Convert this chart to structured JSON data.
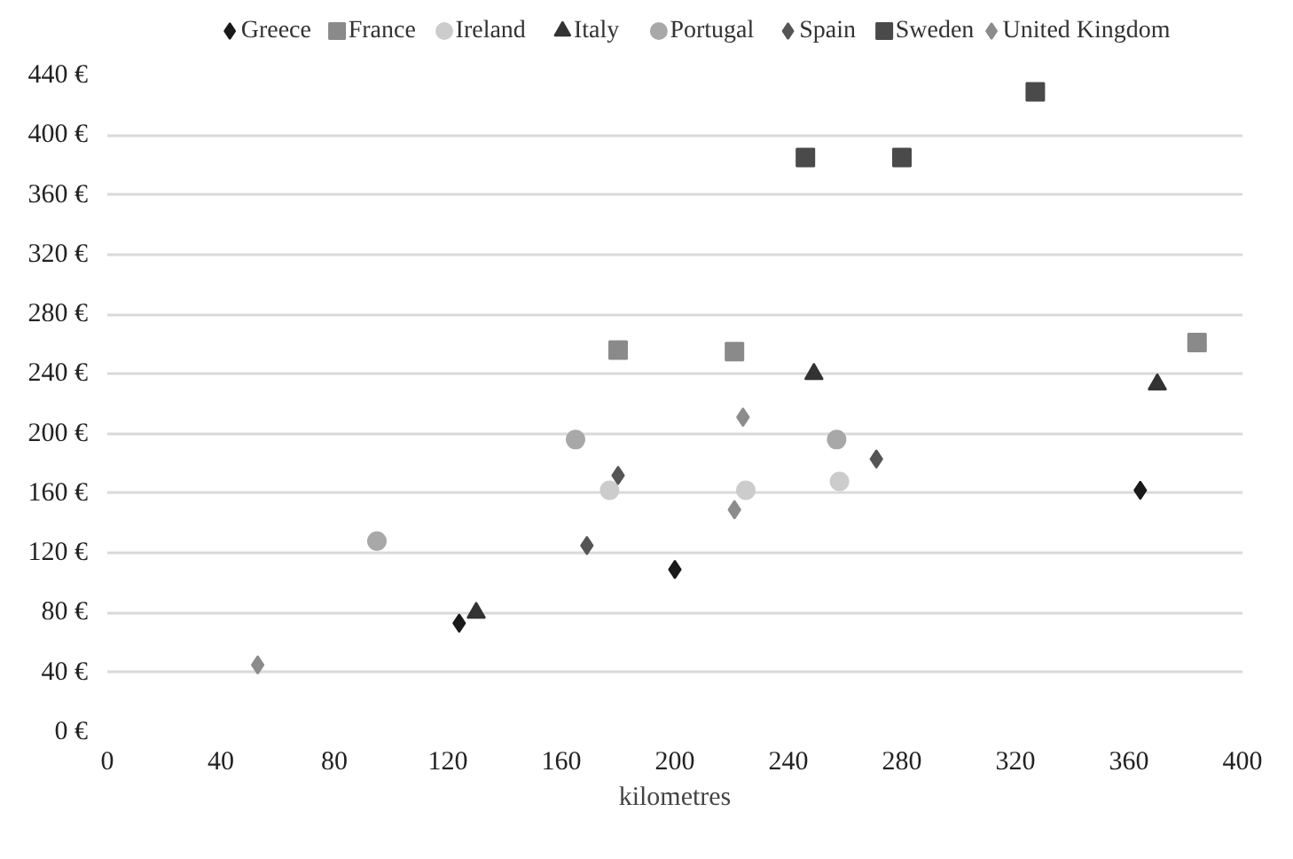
{
  "chart_data": {
    "type": "scatter",
    "xlabel": "kilometres",
    "xlim": [
      0,
      400
    ],
    "xticks": [
      0,
      40,
      80,
      120,
      160,
      200,
      240,
      280,
      320,
      360,
      400
    ],
    "ylim": [
      0,
      440
    ],
    "yticks": [
      {
        "value": 0,
        "label": "0 €"
      },
      {
        "value": 40,
        "label": "40 €"
      },
      {
        "value": 80,
        "label": "80 €"
      },
      {
        "value": 120,
        "label": "120 €"
      },
      {
        "value": 160,
        "label": "160 €"
      },
      {
        "value": 200,
        "label": "200 €"
      },
      {
        "value": 240,
        "label": "240 €"
      },
      {
        "value": 280,
        "label": "280 €"
      },
      {
        "value": 320,
        "label": "320 €"
      },
      {
        "value": 360,
        "label": "360 €"
      },
      {
        "value": 400,
        "label": "400 €"
      },
      {
        "value": 440,
        "label": "440 €"
      }
    ],
    "grid": "y",
    "legend": "top",
    "series": [
      {
        "name": "Greece",
        "color": "#1a1a1a",
        "marker": "diamond",
        "x": [
          124,
          200,
          364
        ],
        "values": [
          73,
          109,
          162
        ]
      },
      {
        "name": "France",
        "color": "#8a8a8a",
        "marker": "square",
        "x": [
          180,
          221,
          384
        ],
        "values": [
          256,
          255,
          261
        ]
      },
      {
        "name": "Ireland",
        "color": "#cccccc",
        "marker": "circle",
        "x": [
          177,
          225,
          258
        ],
        "values": [
          162,
          162,
          168
        ]
      },
      {
        "name": "Italy",
        "color": "#333333",
        "marker": "triangle",
        "x": [
          130,
          249,
          370
        ],
        "values": [
          80,
          240,
          233
        ]
      },
      {
        "name": "Portugal",
        "color": "#a8a8a8",
        "marker": "circle",
        "x": [
          95,
          165,
          257
        ],
        "values": [
          128,
          196,
          196
        ]
      },
      {
        "name": "Spain",
        "color": "#555555",
        "marker": "diamond",
        "x": [
          169,
          180,
          271
        ],
        "values": [
          125,
          172,
          183
        ]
      },
      {
        "name": "Sweden",
        "color": "#4a4a4a",
        "marker": "square",
        "x": [
          246,
          280,
          327
        ],
        "values": [
          385,
          385,
          429
        ]
      },
      {
        "name": "United Kingdom",
        "color": "#8c8c8c",
        "marker": "diamond",
        "x": [
          53,
          221,
          224
        ],
        "values": [
          45,
          149,
          211
        ]
      }
    ]
  }
}
